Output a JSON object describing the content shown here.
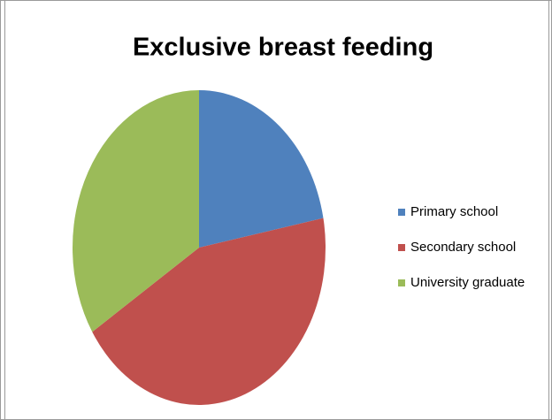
{
  "chart_data": {
    "type": "pie",
    "title": "Exclusive breast feeding",
    "categories": [
      "Primary school",
      "Secondary school",
      "University graduate"
    ],
    "values": [
      22,
      44,
      34
    ],
    "colors": [
      "#4f81bd",
      "#c0504d",
      "#9bbb59"
    ],
    "legend": "right"
  }
}
